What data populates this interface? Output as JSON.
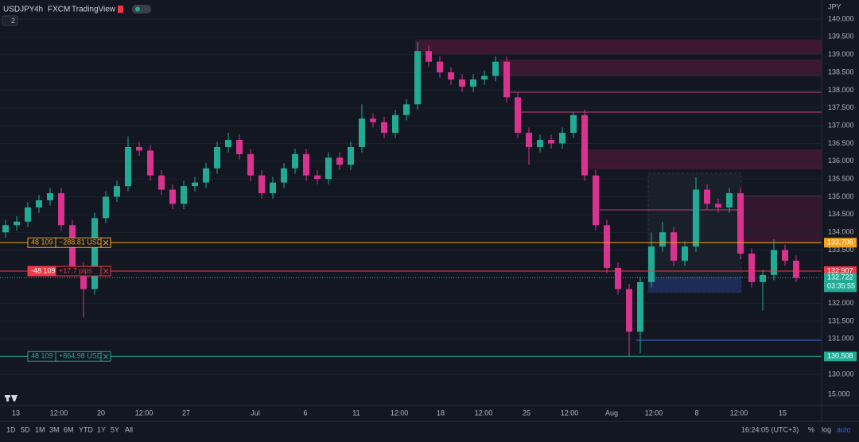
{
  "header": {
    "symbol": "USDJPY",
    "interval": "4h",
    "exchange": "FXCM",
    "source": "TradingView",
    "collapse": "2",
    "currency": "JPY"
  },
  "chart": {
    "type": "candlestick",
    "up_color": "#22ab94",
    "down_color": "#d9338f",
    "ylim": [
      129.0,
      140.5
    ],
    "yticks": [
      {
        "value": 140,
        "label": "140.000"
      },
      {
        "value": 139.5,
        "label": "139.500"
      },
      {
        "value": 139,
        "label": "139.000"
      },
      {
        "value": 138.5,
        "label": "138.500"
      },
      {
        "value": 138,
        "label": "138.000"
      },
      {
        "value": 137.5,
        "label": "137.500"
      },
      {
        "value": 137,
        "label": "137.000"
      },
      {
        "value": 136.5,
        "label": "136.500"
      },
      {
        "value": 136,
        "label": "136.000"
      },
      {
        "value": 135.5,
        "label": "135.500"
      },
      {
        "value": 135,
        "label": "135.000"
      },
      {
        "value": 134.5,
        "label": "134.500"
      },
      {
        "value": 134,
        "label": "134.000"
      },
      {
        "value": 133.5,
        "label": "133.500"
      },
      {
        "value": 132,
        "label": "132.000"
      },
      {
        "value": 131.5,
        "label": "131.500"
      },
      {
        "value": 131,
        "label": "131.000"
      },
      {
        "value": 130,
        "label": "130.000"
      }
    ],
    "axis_stub": "15.000",
    "xlabels": [
      "13",
      "12:00",
      "20",
      "12:00",
      "27",
      "Jul",
      "6",
      "11",
      "12:00",
      "18",
      "12:00",
      "25",
      "12:00",
      "Aug",
      "12:00",
      "8",
      "12:00",
      "15"
    ],
    "candles": [
      [
        134.0,
        134.35,
        133.85,
        134.2
      ],
      [
        134.2,
        134.45,
        134.05,
        134.3
      ],
      [
        134.3,
        134.85,
        134.15,
        134.7
      ],
      [
        134.7,
        135.05,
        134.55,
        134.9
      ],
      [
        134.9,
        135.25,
        134.75,
        135.1
      ],
      [
        135.1,
        135.25,
        134.05,
        134.2
      ],
      [
        134.2,
        134.35,
        132.85,
        133.0
      ],
      [
        133.0,
        133.15,
        131.6,
        132.4
      ],
      [
        132.4,
        134.55,
        132.25,
        134.4
      ],
      [
        134.4,
        135.15,
        134.25,
        135.0
      ],
      [
        135.0,
        135.45,
        134.85,
        135.3
      ],
      [
        135.3,
        136.7,
        135.15,
        136.4
      ],
      [
        136.4,
        136.55,
        136.15,
        136.3
      ],
      [
        136.3,
        136.45,
        135.45,
        135.6
      ],
      [
        135.6,
        135.75,
        135.05,
        135.2
      ],
      [
        135.2,
        135.35,
        134.65,
        134.8
      ],
      [
        134.8,
        135.45,
        134.65,
        135.3
      ],
      [
        135.3,
        135.55,
        135.15,
        135.4
      ],
      [
        135.4,
        135.95,
        135.25,
        135.8
      ],
      [
        135.8,
        136.55,
        135.65,
        136.4
      ],
      [
        136.4,
        136.8,
        136.25,
        136.6
      ],
      [
        136.6,
        136.75,
        136.05,
        136.2
      ],
      [
        136.2,
        136.35,
        135.45,
        135.6
      ],
      [
        135.6,
        135.75,
        134.95,
        135.1
      ],
      [
        135.1,
        135.55,
        134.95,
        135.4
      ],
      [
        135.4,
        135.95,
        135.25,
        135.8
      ],
      [
        135.8,
        136.35,
        135.65,
        136.2
      ],
      [
        136.2,
        136.35,
        135.45,
        135.6
      ],
      [
        135.6,
        135.75,
        135.35,
        135.5
      ],
      [
        135.5,
        136.25,
        135.35,
        136.1
      ],
      [
        136.1,
        136.25,
        135.75,
        135.9
      ],
      [
        135.9,
        136.55,
        135.75,
        136.4
      ],
      [
        136.4,
        137.6,
        136.25,
        137.2
      ],
      [
        137.2,
        137.35,
        136.95,
        137.1
      ],
      [
        137.1,
        137.25,
        136.65,
        136.8
      ],
      [
        136.8,
        137.45,
        136.65,
        137.3
      ],
      [
        137.3,
        137.75,
        137.15,
        137.6
      ],
      [
        137.6,
        139.35,
        137.45,
        139.1
      ],
      [
        139.1,
        139.25,
        138.65,
        138.8
      ],
      [
        138.8,
        138.95,
        138.35,
        138.5
      ],
      [
        138.5,
        138.65,
        138.15,
        138.3
      ],
      [
        138.3,
        138.45,
        137.95,
        138.1
      ],
      [
        138.1,
        138.45,
        137.95,
        138.3
      ],
      [
        138.3,
        138.55,
        138.15,
        138.4
      ],
      [
        138.4,
        138.95,
        138.25,
        138.8
      ],
      [
        138.8,
        138.95,
        137.65,
        137.8
      ],
      [
        137.8,
        137.95,
        136.65,
        136.8
      ],
      [
        136.8,
        136.95,
        135.9,
        136.4
      ],
      [
        136.4,
        136.75,
        136.25,
        136.6
      ],
      [
        136.6,
        136.75,
        136.35,
        136.5
      ],
      [
        136.5,
        136.95,
        136.35,
        136.8
      ],
      [
        136.8,
        137.4,
        136.65,
        137.3
      ],
      [
        137.3,
        137.45,
        135.45,
        135.6
      ],
      [
        135.6,
        135.75,
        134.05,
        134.2
      ],
      [
        134.2,
        134.35,
        132.85,
        133.0
      ],
      [
        133.0,
        133.15,
        132.25,
        132.4
      ],
      [
        132.4,
        132.55,
        130.5,
        131.2
      ],
      [
        131.2,
        132.75,
        130.6,
        132.6
      ],
      [
        132.6,
        134.0,
        132.45,
        133.6
      ],
      [
        133.6,
        134.3,
        133.45,
        134.0
      ],
      [
        134.0,
        134.15,
        133.05,
        133.2
      ],
      [
        133.2,
        133.75,
        133.05,
        133.6
      ],
      [
        133.6,
        135.55,
        133.45,
        135.2
      ],
      [
        135.2,
        135.35,
        134.65,
        134.8
      ],
      [
        134.8,
        134.95,
        134.55,
        134.7
      ],
      [
        134.7,
        135.25,
        134.55,
        135.1
      ],
      [
        135.1,
        135.25,
        133.25,
        133.4
      ],
      [
        133.4,
        133.55,
        132.45,
        132.6
      ],
      [
        132.6,
        132.95,
        131.8,
        132.8
      ],
      [
        132.8,
        133.8,
        132.65,
        133.5
      ],
      [
        133.5,
        133.65,
        133.05,
        133.2
      ],
      [
        133.2,
        133.35,
        132.6,
        132.722
      ]
    ],
    "orders": [
      {
        "qty": "48 109",
        "pnl": "−288.81 USD",
        "price": 133.708,
        "color": "#f7a21b"
      },
      {
        "qty": "-48 109",
        "pnl": "+17.7 pips",
        "price": 132.907,
        "color": "#f23645"
      },
      {
        "qty": "48 109",
        "pnl": "+864.98 USD",
        "price": 130.508,
        "color": "#22ab94"
      }
    ],
    "last": {
      "price": 132.722,
      "countdown": "03:35:55",
      "color": "#22ab94"
    }
  },
  "toolbar": {
    "ranges": [
      "1D",
      "5D",
      "1M",
      "3M",
      "6M",
      "YTD",
      "1Y",
      "5Y",
      "All"
    ],
    "clock": "16:24:05 (UTC+3)",
    "percent": "%",
    "log": "log",
    "auto": "auto"
  }
}
